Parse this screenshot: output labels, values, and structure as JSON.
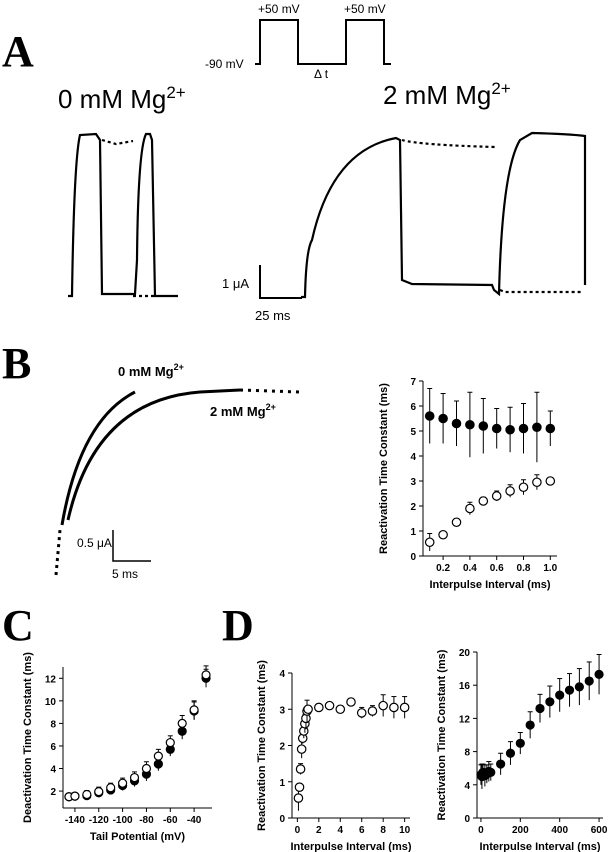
{
  "panels": {
    "A": {
      "label": "A",
      "protocol": {
        "high": "+50 mV",
        "high2": "+50 mV",
        "hold": "-90 mV",
        "interval": "Δ t"
      },
      "left_title": "0 mM Mg",
      "right_title": "2 mM Mg",
      "ion_sup": "2+",
      "scale": {
        "current": "1 μA",
        "time": "25 ms"
      }
    },
    "B": {
      "label": "B",
      "trace_label_0": "0 mM Mg",
      "trace_label_2": "2 mM Mg",
      "ion_sup": "2+",
      "scale": {
        "current": "0.5 μA",
        "time": "5 ms"
      }
    },
    "C": {
      "label": "C"
    },
    "D": {
      "label": "D"
    }
  },
  "chart_data": [
    {
      "id": "B-right",
      "type": "scatter",
      "xlabel": "Interpulse Interval (ms)",
      "ylabel": "Reactivation Time Constant (ms)",
      "xlim": [
        0.05,
        1.05
      ],
      "ylim": [
        0,
        7
      ],
      "xticks": [
        "0.2",
        "0.4",
        "0.6",
        "0.8",
        "1.0"
      ],
      "yticks": [
        "0",
        "1",
        "2",
        "3",
        "4",
        "5",
        "6",
        "7"
      ],
      "grid": false,
      "series": [
        {
          "marker": "filled",
          "x": [
            0.1,
            0.2,
            0.3,
            0.4,
            0.5,
            0.6,
            0.7,
            0.8,
            0.9,
            1.0
          ],
          "y": [
            5.6,
            5.5,
            5.3,
            5.25,
            5.2,
            5.1,
            5.05,
            5.1,
            5.15,
            5.1
          ],
          "err": [
            1.1,
            1.0,
            0.9,
            1.3,
            1.1,
            0.8,
            0.9,
            1.0,
            1.4,
            0.7
          ]
        },
        {
          "marker": "open",
          "x": [
            0.1,
            0.2,
            0.3,
            0.4,
            0.5,
            0.6,
            0.7,
            0.8,
            0.9,
            1.0
          ],
          "y": [
            0.55,
            0.85,
            1.35,
            1.9,
            2.2,
            2.4,
            2.6,
            2.75,
            2.95,
            3.0
          ],
          "err": [
            0.35,
            0.1,
            0.15,
            0.25,
            0.15,
            0.2,
            0.25,
            0.3,
            0.3,
            0.1
          ]
        }
      ]
    },
    {
      "id": "C",
      "type": "scatter",
      "xlabel": "Tail Potential (mV)",
      "ylabel": "Deactivation Time Constant (ms)",
      "xlim": [
        -150,
        -25
      ],
      "ylim": [
        0.5,
        13
      ],
      "xticks": [
        "-140",
        "-120",
        "-100",
        "-80",
        "-60",
        "-40"
      ],
      "yticks": [
        "2",
        "4",
        "6",
        "8",
        "10",
        "12"
      ],
      "grid": false,
      "series": [
        {
          "marker": "filled",
          "x": [
            -145,
            -140,
            -130,
            -120,
            -110,
            -100,
            -90,
            -80,
            -70,
            -60,
            -50,
            -40,
            -30
          ],
          "y": [
            1.5,
            1.55,
            1.6,
            1.85,
            2.1,
            2.5,
            2.9,
            3.5,
            4.4,
            5.7,
            7.3,
            9.1,
            12.0
          ],
          "err": [
            0.3,
            0.3,
            0.35,
            0.4,
            0.4,
            0.45,
            0.5,
            0.6,
            0.6,
            0.6,
            0.7,
            0.8,
            0.8
          ]
        },
        {
          "marker": "open",
          "x": [
            -145,
            -140,
            -130,
            -120,
            -110,
            -100,
            -90,
            -80,
            -70,
            -60,
            -50,
            -40,
            -30
          ],
          "y": [
            1.5,
            1.55,
            1.7,
            1.95,
            2.3,
            2.7,
            3.2,
            4.0,
            5.1,
            6.3,
            8.0,
            9.2,
            12.3
          ],
          "err": [
            0.3,
            0.3,
            0.35,
            0.4,
            0.4,
            0.45,
            0.5,
            0.6,
            0.6,
            0.6,
            0.7,
            0.8,
            0.8
          ]
        }
      ]
    },
    {
      "id": "D-left",
      "type": "scatter",
      "xlabel": "Interpulse Interval (ms)",
      "ylabel": "Reactivation Time Constant (ms)",
      "xlim": [
        -0.5,
        10.5
      ],
      "ylim": [
        0,
        4
      ],
      "xticks": [
        "0",
        "2",
        "4",
        "6",
        "8",
        "10"
      ],
      "yticks": [
        "0",
        "1",
        "2",
        "3",
        "4"
      ],
      "grid": false,
      "series": [
        {
          "marker": "open",
          "x": [
            0.1,
            0.2,
            0.3,
            0.4,
            0.5,
            0.6,
            0.7,
            0.8,
            0.9,
            1.0,
            2,
            3,
            4,
            5,
            6,
            7,
            8,
            9,
            10
          ],
          "y": [
            0.55,
            0.85,
            1.35,
            1.9,
            2.2,
            2.4,
            2.6,
            2.75,
            2.95,
            3.0,
            3.05,
            3.1,
            3.0,
            3.2,
            2.9,
            2.95,
            3.1,
            3.05,
            3.05
          ],
          "err": [
            0.35,
            0.1,
            0.15,
            0.25,
            0.15,
            0.2,
            0.25,
            0.3,
            0.3,
            0.1,
            0.1,
            0.1,
            0.1,
            0.1,
            0.15,
            0.15,
            0.3,
            0.3,
            0.3
          ]
        }
      ]
    },
    {
      "id": "D-right",
      "type": "scatter",
      "xlabel": "Interpulse Interval (ms)",
      "ylabel": "Reactivation Time Constant (ms)",
      "xlim": [
        -20,
        620
      ],
      "ylim": [
        0,
        20
      ],
      "xticks": [
        "0",
        "200",
        "400",
        "600"
      ],
      "yticks": [
        "0",
        "4",
        "8",
        "12",
        "16",
        "20"
      ],
      "grid": false,
      "series": [
        {
          "marker": "filled",
          "x": [
            0,
            5,
            10,
            20,
            30,
            40,
            50,
            100,
            150,
            200,
            250,
            300,
            350,
            400,
            450,
            500,
            550,
            600
          ],
          "y": [
            5.2,
            5.0,
            5.5,
            5.1,
            5.3,
            5.6,
            5.5,
            6.5,
            7.8,
            9.0,
            11.2,
            13.2,
            14.0,
            14.8,
            15.4,
            15.8,
            16.5,
            17.3
          ],
          "err": [
            1.2,
            1.5,
            1.0,
            1.3,
            1.1,
            1.2,
            1.0,
            1.3,
            1.4,
            1.3,
            1.6,
            1.7,
            1.9,
            2.0,
            2.0,
            2.2,
            2.3,
            2.4
          ]
        }
      ]
    }
  ]
}
